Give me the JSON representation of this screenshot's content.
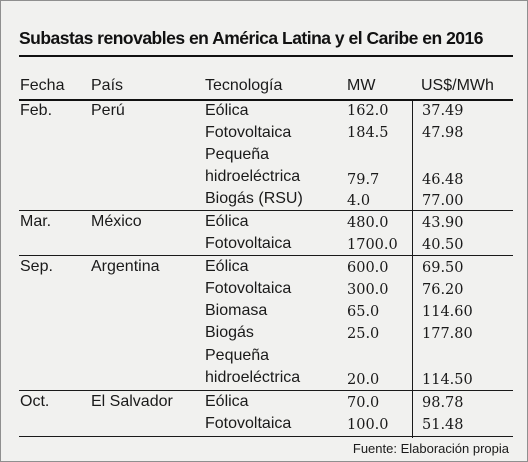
{
  "title": "Subastas renovables en América Latina y el Caribe en 2016",
  "headers": {
    "fecha": "Fecha",
    "pais": "País",
    "tecnologia": "Tecnología",
    "mw": "MW",
    "precio": "US$/MWh"
  },
  "groups": [
    {
      "fecha": "Feb.",
      "pais": "Perú",
      "rows": [
        {
          "tech": "Eólica",
          "mw": "162.0",
          "price": "37.49"
        },
        {
          "tech": "Fotovoltaica",
          "mw": "184.5",
          "price": "47.98"
        },
        {
          "tech": "Pequeña",
          "tech2": "hidroeléctrica",
          "mw": "79.7",
          "price": "46.48"
        },
        {
          "tech": "Biogás (RSU)",
          "mw": "4.0",
          "price": "77.00"
        }
      ]
    },
    {
      "fecha": "Mar.",
      "pais": "México",
      "rows": [
        {
          "tech": "Eólica",
          "mw": "480.0",
          "price": "43.90"
        },
        {
          "tech": "Fotovoltaica",
          "mw": "1700.0",
          "price": "40.50"
        }
      ]
    },
    {
      "fecha": "Sep.",
      "pais": "Argentina",
      "rows": [
        {
          "tech": "Eólica",
          "mw": "600.0",
          "price": "69.50"
        },
        {
          "tech": "Fotovoltaica",
          "mw": "300.0",
          "price": "76.20"
        },
        {
          "tech": "Biomasa",
          "mw": "65.0",
          "price": "114.60"
        },
        {
          "tech": "Biogás",
          "mw": "25.0",
          "price": "177.80"
        },
        {
          "tech": "Pequeña",
          "tech2": "hidroeléctrica",
          "mw": "20.0",
          "price": "114.50"
        }
      ]
    },
    {
      "fecha": "Oct.",
      "pais": "El Salvador",
      "rows": [
        {
          "tech": "Eólica",
          "mw": "70.0",
          "price": "98.78"
        },
        {
          "tech": "Fotovoltaica",
          "mw": "100.0",
          "price": "51.48"
        }
      ]
    }
  ],
  "source": "Fuente: Elaboración propia"
}
